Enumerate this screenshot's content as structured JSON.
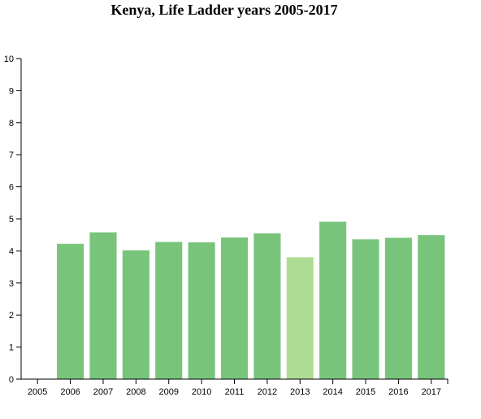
{
  "chart_data": {
    "type": "bar",
    "title": "Kenya, Life Ladder years 2005-2017",
    "xlabel": "",
    "ylabel": "",
    "categories": [
      "2005",
      "2006",
      "2007",
      "2008",
      "2009",
      "2010",
      "2011",
      "2012",
      "2013",
      "2014",
      "2015",
      "2016",
      "2017"
    ],
    "values": [
      null,
      4.22,
      4.58,
      4.02,
      4.28,
      4.27,
      4.42,
      4.55,
      3.8,
      4.91,
      4.36,
      4.41,
      4.49
    ],
    "ylim": [
      0,
      10
    ],
    "yticks": [
      "0",
      "1",
      "2",
      "3",
      "4",
      "5",
      "6",
      "7",
      "8",
      "9",
      "10"
    ],
    "grid": false,
    "colors": {
      "bar": "#78c47b",
      "highlight": "#aedc92",
      "axis": "#000000"
    },
    "highlight_category": "2013"
  }
}
